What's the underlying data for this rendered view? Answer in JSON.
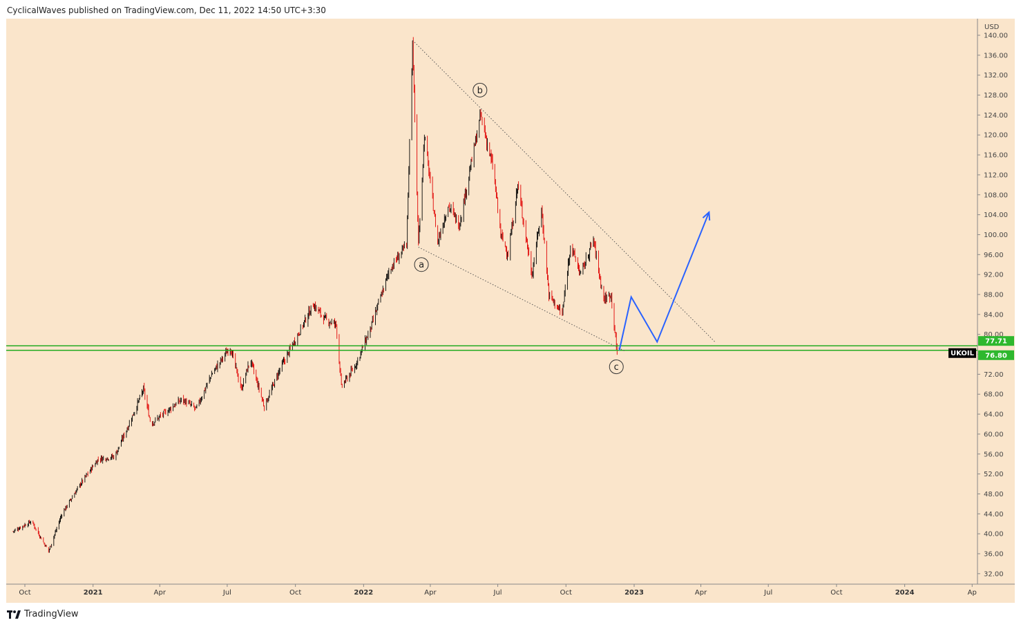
{
  "header": {
    "text": "CyclicalWaves published on TradingView.com, Dec 11, 2022 14:50 UTC+3:30"
  },
  "footer": {
    "brand": "TradingView",
    "logo_icon": "tradingview-logo-icon"
  },
  "chart_data": {
    "type": "candlestick",
    "currency": "USD",
    "symbol": "UKOIL",
    "ylim": [
      30,
      141
    ],
    "y_ticks": [
      "140.00",
      "136.00",
      "132.00",
      "128.00",
      "124.00",
      "120.00",
      "116.00",
      "112.00",
      "108.00",
      "104.00",
      "100.00",
      "96.00",
      "92.00",
      "88.00",
      "84.00",
      "80.00",
      "76.00",
      "72.00",
      "68.00",
      "64.00",
      "60.00",
      "56.00",
      "52.00",
      "48.00",
      "44.00",
      "40.00",
      "36.00",
      "32.00"
    ],
    "x_ticks": [
      {
        "label": "Oct",
        "date": "2020-10-01",
        "bold": false
      },
      {
        "label": "2021",
        "date": "2021-01-01",
        "bold": true
      },
      {
        "label": "Apr",
        "date": "2021-04-01",
        "bold": false
      },
      {
        "label": "Jul",
        "date": "2021-07-01",
        "bold": false
      },
      {
        "label": "Oct",
        "date": "2021-10-01",
        "bold": false
      },
      {
        "label": "2022",
        "date": "2022-01-01",
        "bold": true
      },
      {
        "label": "Apr",
        "date": "2022-04-01",
        "bold": false
      },
      {
        "label": "Jul",
        "date": "2022-07-01",
        "bold": false
      },
      {
        "label": "Oct",
        "date": "2022-10-01",
        "bold": false
      },
      {
        "label": "2023",
        "date": "2023-01-01",
        "bold": true
      },
      {
        "label": "Apr",
        "date": "2023-04-01",
        "bold": false
      },
      {
        "label": "Jul",
        "date": "2023-07-01",
        "bold": false
      },
      {
        "label": "Oct",
        "date": "2023-10-01",
        "bold": false
      },
      {
        "label": "2024",
        "date": "2024-01-01",
        "bold": true
      },
      {
        "label": "Ap",
        "date": "2024-04-01",
        "bold": false
      }
    ],
    "price_path": [
      [
        "2020-09-15",
        40.5
      ],
      [
        "2020-10-10",
        42.5
      ],
      [
        "2020-11-02",
        36.5
      ],
      [
        "2020-11-20",
        44
      ],
      [
        "2020-12-15",
        50
      ],
      [
        "2021-01-08",
        55
      ],
      [
        "2021-01-30",
        55.5
      ],
      [
        "2021-02-20",
        62.5
      ],
      [
        "2021-03-10",
        69
      ],
      [
        "2021-03-20",
        62
      ],
      [
        "2021-04-01",
        63.5
      ],
      [
        "2021-05-01",
        67
      ],
      [
        "2021-05-20",
        65
      ],
      [
        "2021-06-10",
        72
      ],
      [
        "2021-07-05",
        77.5
      ],
      [
        "2021-07-20",
        69
      ],
      [
        "2021-08-01",
        75
      ],
      [
        "2021-08-20",
        65.5
      ],
      [
        "2021-09-10",
        73
      ],
      [
        "2021-10-01",
        79
      ],
      [
        "2021-10-25",
        86
      ],
      [
        "2021-11-10",
        83
      ],
      [
        "2021-11-25",
        82
      ],
      [
        "2021-12-02",
        69.5
      ],
      [
        "2021-12-20",
        73.5
      ],
      [
        "2022-01-10",
        81
      ],
      [
        "2022-02-05",
        93
      ],
      [
        "2022-02-28",
        98
      ],
      [
        "2022-03-08",
        139
      ],
      [
        "2022-03-16",
        98
      ],
      [
        "2022-03-24",
        120
      ],
      [
        "2022-04-11",
        98.5
      ],
      [
        "2022-04-25",
        106
      ],
      [
        "2022-05-10",
        102
      ],
      [
        "2022-06-08",
        124
      ],
      [
        "2022-06-25",
        113
      ],
      [
        "2022-07-05",
        100
      ],
      [
        "2022-07-15",
        96
      ],
      [
        "2022-07-28",
        110
      ],
      [
        "2022-08-16",
        92
      ],
      [
        "2022-08-29",
        105
      ],
      [
        "2022-09-08",
        88
      ],
      [
        "2022-09-26",
        84
      ],
      [
        "2022-10-07",
        98
      ],
      [
        "2022-10-21",
        92
      ],
      [
        "2022-11-07",
        99
      ],
      [
        "2022-11-21",
        87
      ],
      [
        "2022-12-01",
        88
      ],
      [
        "2022-12-09",
        76
      ]
    ],
    "horizontal_levels": [
      77.71,
      76.8
    ],
    "price_labels": [
      "77.71",
      "76.80"
    ],
    "wave_labels": [
      {
        "text": "a",
        "date": "2022-03-20",
        "price": 94
      },
      {
        "text": "b",
        "date": "2022-06-07",
        "price": 129
      },
      {
        "text": "c",
        "date": "2022-12-08",
        "price": 73.5
      }
    ],
    "trendlines": [
      {
        "from": [
          "2022-03-08",
          139
        ],
        "to": [
          "2023-04-20",
          78.5
        ]
      },
      {
        "from": [
          "2022-03-16",
          97.5
        ],
        "to": [
          "2022-12-20",
          76.6
        ]
      }
    ],
    "projection": [
      [
        "2022-12-12",
        76.8
      ],
      [
        "2022-12-28",
        87.5
      ],
      [
        "2023-02-01",
        78.5
      ],
      [
        "2023-04-12",
        104.5
      ]
    ],
    "colors": {
      "background": "#fae5cb",
      "up_candle": "#000000",
      "down_candle": "#e00000",
      "support_line": "#22aa22",
      "projection": "#2962ff",
      "label_green": "#2eb82e",
      "symbol_tag": "#000000"
    }
  }
}
